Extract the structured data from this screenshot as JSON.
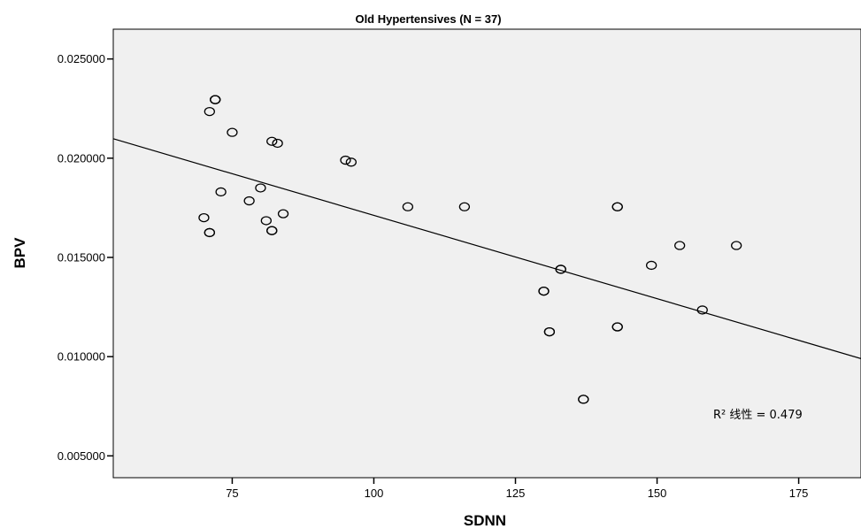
{
  "chart_data": {
    "type": "scatter",
    "title": "Old Hypertensives (N = 37)",
    "xlabel": "SDNN",
    "ylabel": "BPV",
    "xlim": [
      54,
      186
    ],
    "ylim": [
      0.0039,
      0.0265
    ],
    "x_ticks": [
      75,
      100,
      125,
      150,
      175
    ],
    "x_tick_labels": [
      "75",
      "100",
      "125",
      "150",
      "175"
    ],
    "y_ticks": [
      0.005,
      0.01,
      0.015,
      0.02,
      0.025
    ],
    "y_tick_labels": [
      "0.005000",
      "0.010000",
      "0.015000",
      "0.020000",
      "0.025000"
    ],
    "plot_background": "#f0f0f0",
    "grid": false,
    "legend": "none",
    "points": [
      {
        "x": 72,
        "y": 0.02295
      },
      {
        "x": 72,
        "y": 0.02295
      },
      {
        "x": 71,
        "y": 0.02235
      },
      {
        "x": 75,
        "y": 0.0213
      },
      {
        "x": 82,
        "y": 0.02085
      },
      {
        "x": 83,
        "y": 0.02075
      },
      {
        "x": 95,
        "y": 0.0199
      },
      {
        "x": 96,
        "y": 0.0198
      },
      {
        "x": 80,
        "y": 0.0185
      },
      {
        "x": 73,
        "y": 0.0183
      },
      {
        "x": 78,
        "y": 0.01785
      },
      {
        "x": 106,
        "y": 0.01755
      },
      {
        "x": 116,
        "y": 0.01755
      },
      {
        "x": 143,
        "y": 0.01755
      },
      {
        "x": 84,
        "y": 0.0172
      },
      {
        "x": 70,
        "y": 0.017
      },
      {
        "x": 81,
        "y": 0.01685
      },
      {
        "x": 71,
        "y": 0.01625
      },
      {
        "x": 71,
        "y": 0.01625
      },
      {
        "x": 82,
        "y": 0.01635
      },
      {
        "x": 82,
        "y": 0.01635
      },
      {
        "x": 154,
        "y": 0.0156
      },
      {
        "x": 164,
        "y": 0.0156
      },
      {
        "x": 149,
        "y": 0.0146
      },
      {
        "x": 133,
        "y": 0.0144
      },
      {
        "x": 133,
        "y": 0.0144
      },
      {
        "x": 130,
        "y": 0.0133
      },
      {
        "x": 130,
        "y": 0.0133
      },
      {
        "x": 158,
        "y": 0.01235
      },
      {
        "x": 131,
        "y": 0.01125
      },
      {
        "x": 131,
        "y": 0.01125
      },
      {
        "x": 143,
        "y": 0.0115
      },
      {
        "x": 143,
        "y": 0.0115
      },
      {
        "x": 137,
        "y": 0.00785
      },
      {
        "x": 137,
        "y": 0.00785
      },
      {
        "x": 143,
        "y": 0.01755
      },
      {
        "x": 72,
        "y": 0.02295
      }
    ],
    "fit_line": {
      "x": [
        54,
        186
      ],
      "y": [
        0.02098,
        0.0099
      ]
    },
    "annotation": "R² 线性 = 0.479"
  }
}
